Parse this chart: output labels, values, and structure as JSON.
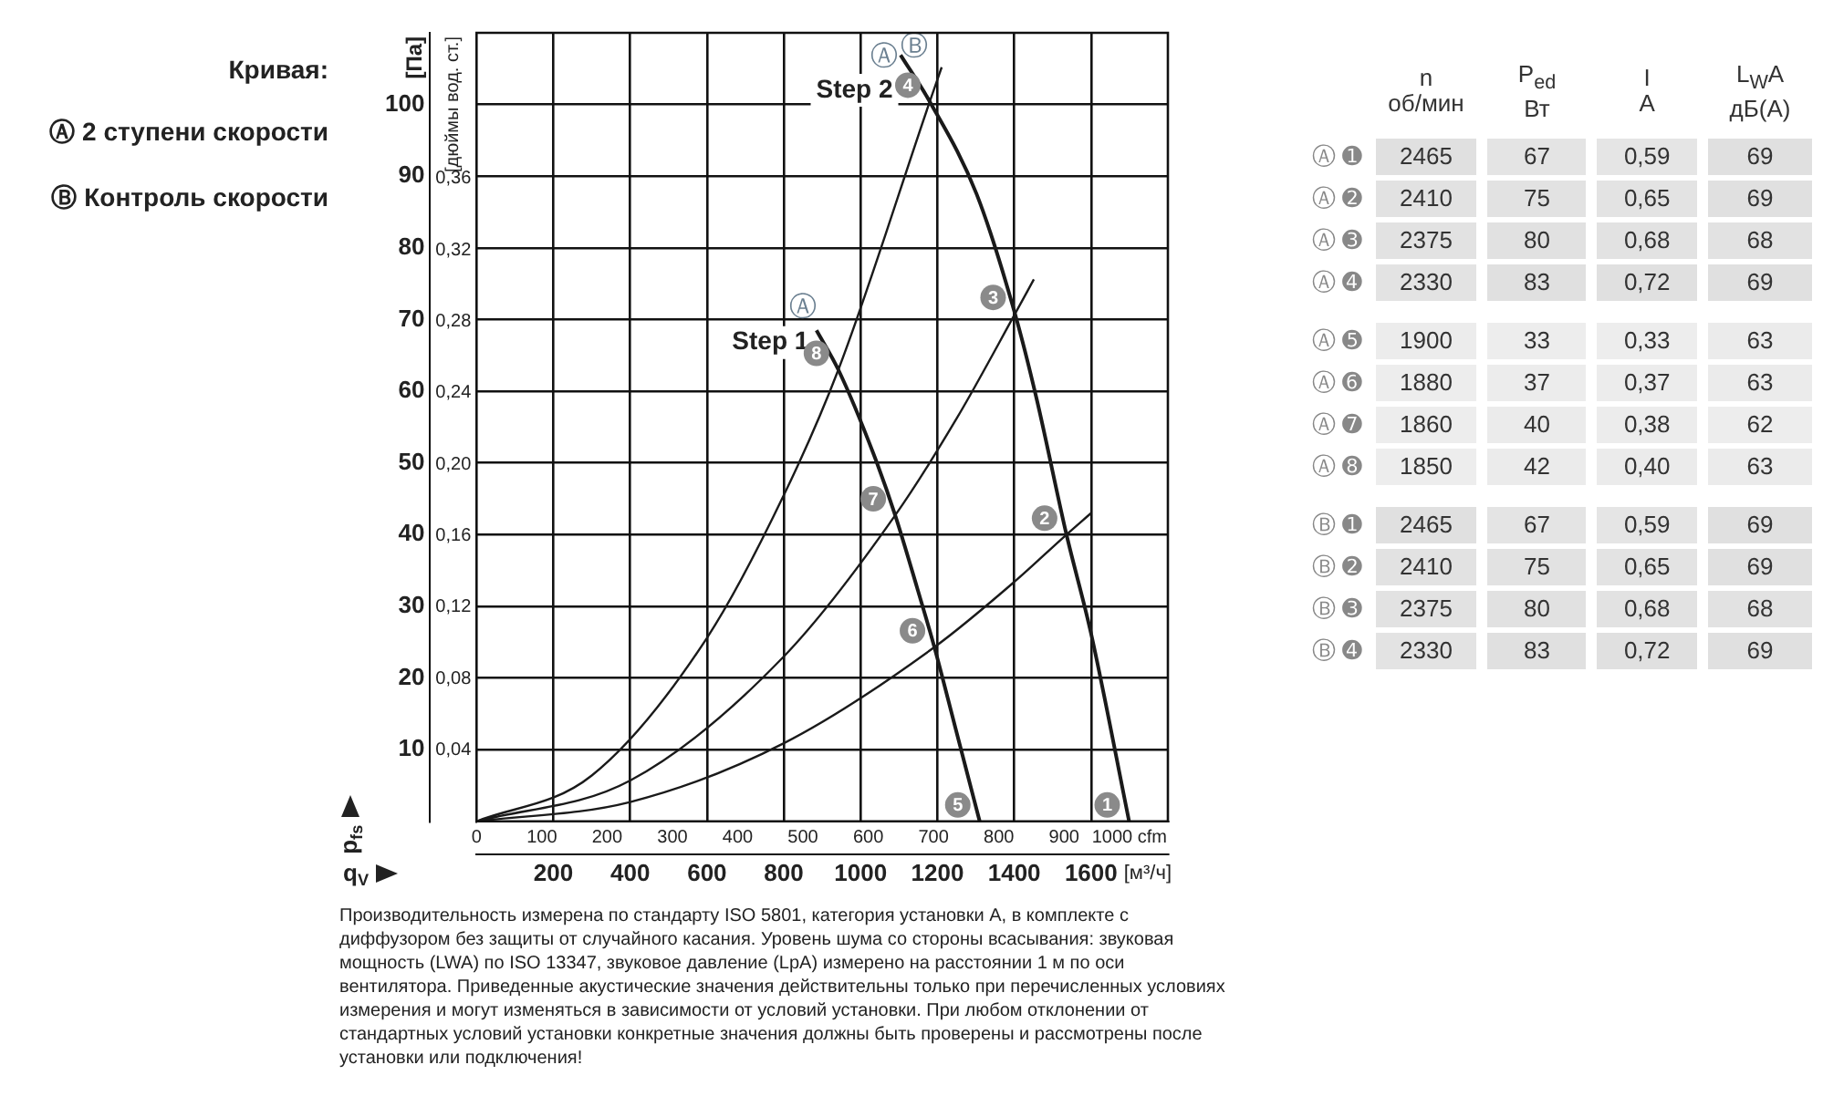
{
  "chart_data": [
    {
      "type": "line",
      "legend_title": "Кривая:",
      "xlabel": "q$_{V}$",
      "ylabel": "p$_{fs}$",
      "y2label": "[дюймы вод. ст.]",
      "xlim": [
        0,
        1800
      ],
      "xticks": [
        200,
        400,
        600,
        800,
        1000,
        1200,
        1400,
        1600
      ],
      "x2lim": [
        0,
        1059
      ],
      "x2ticks": [
        0,
        100,
        200,
        300,
        400,
        500,
        600,
        700,
        800,
        900,
        {
          "value": 1000,
          "label": "1000 cfm"
        }
      ],
      "ylim": [
        0,
        110
      ],
      "yticks": [
        10,
        20,
        30,
        40,
        50,
        60,
        70,
        80,
        90,
        100
      ],
      "y2lim": [
        0,
        0.4416
      ],
      "y2ticks": [
        {
          "value": 0.04,
          "label": "0,04"
        },
        {
          "value": 0.08,
          "label": "0,08"
        },
        {
          "value": 0.12,
          "label": "0,12"
        },
        {
          "value": 0.16,
          "label": "0,16"
        },
        {
          "value": 0.2,
          "label": "0,20"
        },
        {
          "value": 0.24,
          "label": "0,24"
        },
        {
          "value": 0.28,
          "label": "0,28"
        },
        {
          "value": 0.32,
          "label": "0,32"
        },
        {
          "value": 0.36,
          "label": "0,36"
        }
      ],
      "grid": true,
      "legend": false,
      "line_style": "solid",
      "series": [
        {
          "color": "#1a1a1a",
          "x": [
            1104,
            1180,
            1302,
            1402,
            1458,
            1536,
            1600,
            1699
          ],
          "values": [
            106.9,
            100.4,
            87.5,
            70.8,
            59,
            40,
            26.2,
            0
          ]
        },
        {
          "color": "#1a1a1a",
          "x": [
            885,
            942,
            1034,
            1090,
            1147,
            1192,
            1246,
            1310
          ],
          "values": [
            68.5,
            63,
            51.2,
            42.7,
            32.6,
            24.3,
            13.2,
            0
          ]
        },
        {
          "color": "#1a1a1a",
          "x": [
            0,
            300,
            600,
            800,
            942,
            1180,
            1211
          ],
          "values": [
            0,
            6.4,
            25.6,
            45.5,
            63,
            100.4,
            105.2
          ]
        },
        {
          "color": "#1a1a1a",
          "x": [
            0,
            400,
            800,
            1090,
            1250,
            1402,
            1451
          ],
          "values": [
            0,
            5.7,
            23,
            42.7,
            56.2,
            70.8,
            75.6
          ]
        },
        {
          "color": "#1a1a1a",
          "x": [
            0,
            400,
            800,
            1192,
            1400,
            1536,
            1600
          ],
          "values": [
            0,
            2.7,
            10.9,
            24.3,
            33.4,
            40,
            43
          ]
        }
      ],
      "annotations": [
        "Ⓐ 2 ступени скорости",
        "Ⓑ Контроль скорости",
        "Производительность измерена по стандарту ISO 5801, категория установки А, в комплекте с диффузором без защиты от случайного касания. Уровень шума со стороны всасывания: звуковая мощность (LWA) по ISO 13347, звуковое давление (LpA) измерено на расстоянии 1 м по оси вентилятора. Приведенные акустические значения действительны только при перечисленных условиях измерения и могут изменяться в зависимости от условий установки. При любом отклонении от стандартных условий установки конкретные значения должны быть проверены и рассмотрены после установки или подключения!",
        "[м³/ч]",
        "[Па]",
        "Step 1",
        "Step 2",
        "Ⓐ",
        "Ⓐ",
        "Ⓑ",
        {
          "text": "1",
          "x": 1699,
          "y": 0
        },
        {
          "text": "2",
          "x": 1536,
          "y": 40
        },
        {
          "text": "3",
          "x": 1402,
          "y": 70.8
        },
        {
          "text": "4",
          "x": 1180,
          "y": 100.4
        },
        {
          "text": "5",
          "x": 1310,
          "y": 0
        },
        {
          "text": "6",
          "x": 1192,
          "y": 24.3
        },
        {
          "text": "7",
          "x": 1090,
          "y": 42.7
        },
        {
          "text": "8",
          "x": 942,
          "y": 63
        }
      ]
    },
    {
      "type": "heatmap",
      "categories": [
        "n об/мин",
        "P$_{ed}$ Вт",
        "I A",
        "L$_{W}$A дБ(A)"
      ],
      "y_categories": [
        "Ⓐ ➊",
        "Ⓐ ➋",
        "Ⓐ ➌",
        "Ⓐ ➍",
        "Ⓐ ➎",
        "Ⓐ ➏",
        "Ⓐ ➐",
        "Ⓐ ➑",
        "Ⓑ ➊",
        "Ⓑ ➋",
        "Ⓑ ➌",
        "Ⓑ ➍"
      ],
      "cells": [
        [
          2465,
          67,
          0.59,
          69
        ],
        [
          2410,
          75,
          0.65,
          69
        ],
        [
          2375,
          80,
          0.68,
          68
        ],
        [
          2330,
          83,
          0.72,
          69
        ],
        [
          1900,
          33,
          0.33,
          63
        ],
        [
          1880,
          37,
          0.37,
          63
        ],
        [
          1860,
          40,
          0.38,
          62
        ],
        [
          1850,
          42,
          0.4,
          63
        ],
        [
          2465,
          67,
          0.59,
          69
        ],
        [
          2410,
          75,
          0.65,
          69
        ],
        [
          2375,
          80,
          0.68,
          68
        ],
        [
          2330,
          83,
          0.72,
          69
        ]
      ],
      "cell_labels": [
        [
          "2465",
          "67",
          "0,59",
          "69"
        ],
        [
          "2410",
          "75",
          "0,65",
          "69"
        ],
        [
          "2375",
          "80",
          "0,68",
          "68"
        ],
        [
          "2330",
          "83",
          "0,72",
          "69"
        ],
        [
          "1900",
          "33",
          "0,33",
          "63"
        ],
        [
          "1880",
          "37",
          "0,37",
          "63"
        ],
        [
          "1860",
          "40",
          "0,38",
          "62"
        ],
        [
          "1850",
          "42",
          "0,40",
          "63"
        ],
        [
          "2465",
          "67",
          "0,59",
          "69"
        ],
        [
          "2410",
          "75",
          "0,65",
          "69"
        ],
        [
          "2375",
          "80",
          "0,68",
          "68"
        ],
        [
          "2330",
          "83",
          "0,72",
          "69"
        ]
      ]
    }
  ]
}
